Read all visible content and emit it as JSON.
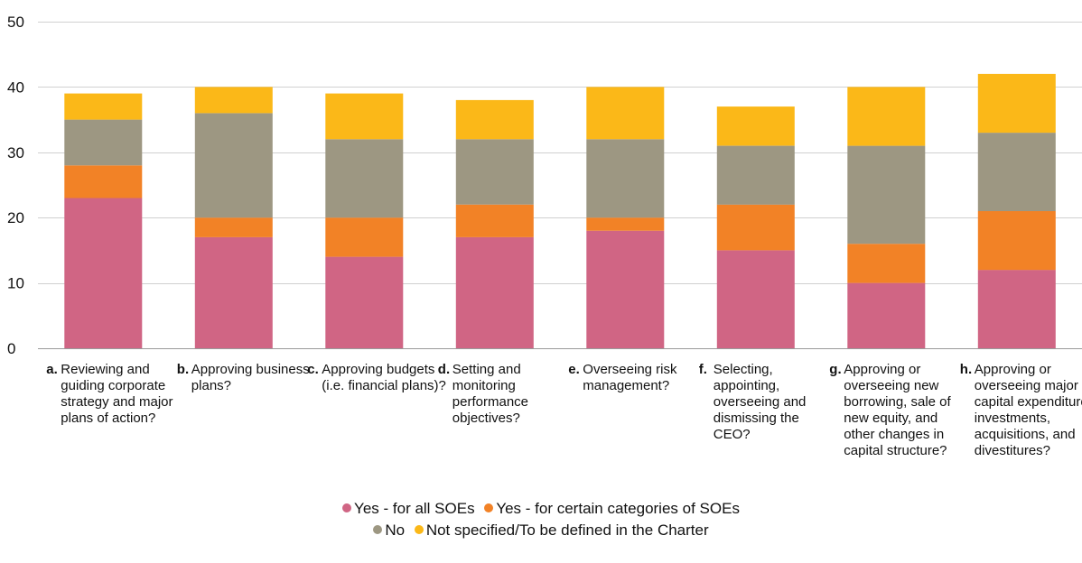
{
  "chart_data": {
    "type": "bar",
    "stacked": true,
    "categories": [
      {
        "letter": "a.",
        "label": "Reviewing and guiding corporate strategy and major plans of action?"
      },
      {
        "letter": "b.",
        "label": "Approving business plans?"
      },
      {
        "letter": "c.",
        "label": "Approving budgets (i.e. financial plans)?"
      },
      {
        "letter": "d.",
        "label": "Setting and monitoring performance objectives?"
      },
      {
        "letter": "e.",
        "label": "Overseeing risk management?"
      },
      {
        "letter": "f.",
        "label": "Selecting, appointing, overseeing and dismissing the CEO?"
      },
      {
        "letter": "g.",
        "label": "Approving or overseeing new borrowing, sale of new equity, and other changes in capital structure?"
      },
      {
        "letter": "h.",
        "label": "Approving or overseeing major capital expenditures, investments, acquisitions, and divestitures?"
      }
    ],
    "series": [
      {
        "name": "Yes - for all SOEs",
        "color": "#d06584",
        "values": [
          23,
          17,
          14,
          17,
          18,
          15,
          10,
          12
        ]
      },
      {
        "name": "Yes - for certain categories of SOEs",
        "color": "#f28226",
        "values": [
          5,
          3,
          6,
          5,
          2,
          7,
          6,
          9
        ]
      },
      {
        "name": "No",
        "color": "#9d9782",
        "values": [
          7,
          16,
          12,
          10,
          12,
          9,
          15,
          12
        ]
      },
      {
        "name": "Not specified/To be defined in the Charter",
        "color": "#fbb818",
        "values": [
          4,
          4,
          7,
          6,
          8,
          6,
          9,
          9
        ]
      }
    ],
    "ylim": [
      0,
      50
    ],
    "yticks": [
      0,
      10,
      20,
      30,
      40,
      50
    ],
    "grid": true,
    "legend_position": "bottom"
  }
}
